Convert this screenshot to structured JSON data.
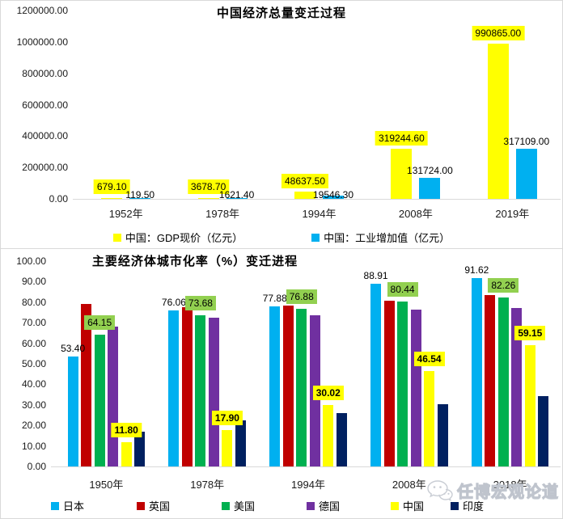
{
  "watermark": {
    "text": "任博宏观论道",
    "icon": "wechat-icon",
    "color": "#c4c9d2"
  },
  "chart_data": [
    {
      "type": "bar",
      "title": "中国经济总量变迁过程",
      "categories": [
        "1952年",
        "1978年",
        "1994年",
        "2008年",
        "2019年"
      ],
      "series": [
        {
          "name": "中国：GDP现价（亿元）",
          "color": "#FFFF00",
          "values": [
            679.1,
            3678.7,
            48637.5,
            319244.6,
            990865.0
          ],
          "data_labels": true,
          "label_bg": "#FFFF00",
          "label_bold": false
        },
        {
          "name": "中国：工业增加值（亿元）",
          "color": "#00B0F0",
          "values": [
            119.5,
            1621.4,
            19546.3,
            131724.0,
            317109.0
          ],
          "data_labels": true,
          "label_bg": null,
          "label_bold": false
        }
      ],
      "ylim": [
        0,
        1200000
      ],
      "ystep": 200000,
      "grid": false,
      "legend_position": "bottom-center",
      "xlabel": "",
      "ylabel": ""
    },
    {
      "type": "bar",
      "title": "主要经济体城市化率（%）变迁进程",
      "categories": [
        "1950年",
        "1978年",
        "1994年",
        "2008年",
        "2018年"
      ],
      "series": [
        {
          "name": "日本",
          "color": "#00B0F0",
          "values": [
            53.4,
            76.06,
            77.88,
            88.91,
            91.62
          ],
          "data_labels": true,
          "label_bg": null,
          "label_bold": false
        },
        {
          "name": "英国",
          "color": "#C00000",
          "values": [
            79.0,
            77.6,
            78.5,
            80.7,
            83.3
          ],
          "data_labels": false,
          "label_bg": null,
          "label_bold": false
        },
        {
          "name": "美国",
          "color": "#00B050",
          "values": [
            64.15,
            73.68,
            76.88,
            80.44,
            82.26
          ],
          "data_labels": true,
          "label_bg": "#92D050",
          "label_bold": false
        },
        {
          "name": "德国",
          "color": "#7030A0",
          "values": [
            68.0,
            72.4,
            73.5,
            76.3,
            77.2
          ],
          "data_labels": false,
          "label_bg": null,
          "label_bold": false
        },
        {
          "name": "中国",
          "color": "#FFFF00",
          "values": [
            11.8,
            17.9,
            30.02,
            46.54,
            59.15
          ],
          "data_labels": true,
          "label_bg": "#FFFF00",
          "label_bold": true
        },
        {
          "name": "印度",
          "color": "#002060",
          "values": [
            16.8,
            22.3,
            26.0,
            30.2,
            34.1
          ],
          "data_labels": false,
          "label_bg": null,
          "label_bold": false
        }
      ],
      "ylim": [
        0,
        100
      ],
      "ystep": 10,
      "grid": false,
      "legend_position": "bottom-spread",
      "xlabel": "",
      "ylabel": ""
    }
  ]
}
